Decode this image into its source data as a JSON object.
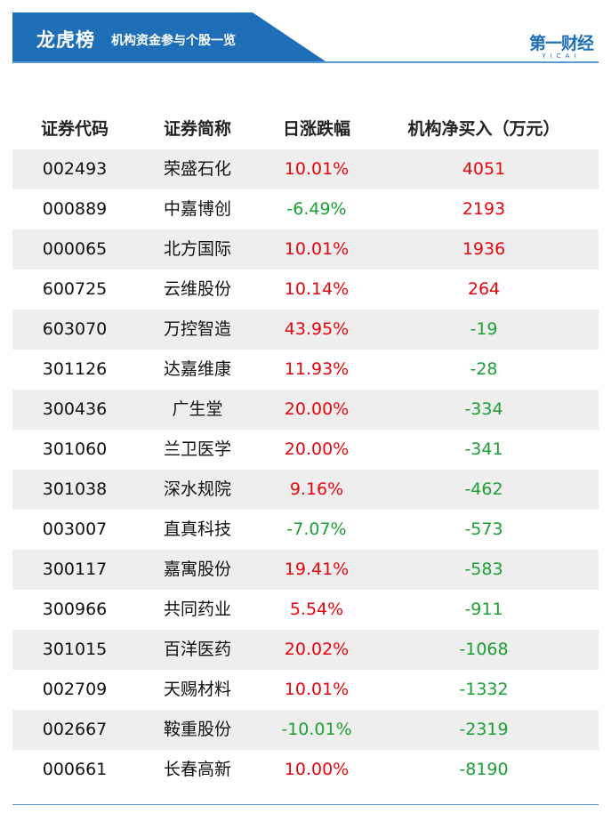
{
  "header": {
    "title": "龙虎榜",
    "subtitle": "机构资金参与个股一览",
    "banner_color": "#1f6fb8",
    "logo_text": "第一财经",
    "logo_subtext": "YICAI"
  },
  "table": {
    "columns": [
      "证券代码",
      "证券简称",
      "日涨跌幅",
      "机构净买入（万元）"
    ],
    "up_color": "#e8050b",
    "down_color": "#1aa033",
    "rows": [
      {
        "code": "002493",
        "name": "荣盛石化",
        "change": "10.01%",
        "net_buy": "4051"
      },
      {
        "code": "000889",
        "name": "中嘉博创",
        "change": "-6.49%",
        "net_buy": "2193"
      },
      {
        "code": "000065",
        "name": "北方国际",
        "change": "10.01%",
        "net_buy": "1936"
      },
      {
        "code": "600725",
        "name": "云维股份",
        "change": "10.14%",
        "net_buy": "264"
      },
      {
        "code": "603070",
        "name": "万控智造",
        "change": "43.95%",
        "net_buy": "-19"
      },
      {
        "code": "301126",
        "name": "达嘉维康",
        "change": "11.93%",
        "net_buy": "-28"
      },
      {
        "code": "300436",
        "name": "广生堂",
        "change": "20.00%",
        "net_buy": "-334"
      },
      {
        "code": "301060",
        "name": "兰卫医学",
        "change": "20.00%",
        "net_buy": "-341"
      },
      {
        "code": "301038",
        "name": "深水规院",
        "change": "9.16%",
        "net_buy": "-462"
      },
      {
        "code": "003007",
        "name": "直真科技",
        "change": "-7.07%",
        "net_buy": "-573"
      },
      {
        "code": "300117",
        "name": "嘉寓股份",
        "change": "19.41%",
        "net_buy": "-583"
      },
      {
        "code": "300966",
        "name": "共同药业",
        "change": "5.54%",
        "net_buy": "-911"
      },
      {
        "code": "301015",
        "name": "百洋医药",
        "change": "20.02%",
        "net_buy": "-1068"
      },
      {
        "code": "002709",
        "name": "天赐材料",
        "change": "10.01%",
        "net_buy": "-1332"
      },
      {
        "code": "002667",
        "name": "鞍重股份",
        "change": "-10.01%",
        "net_buy": "-2319"
      },
      {
        "code": "000661",
        "name": "长春高新",
        "change": "10.00%",
        "net_buy": "-8190"
      }
    ]
  }
}
